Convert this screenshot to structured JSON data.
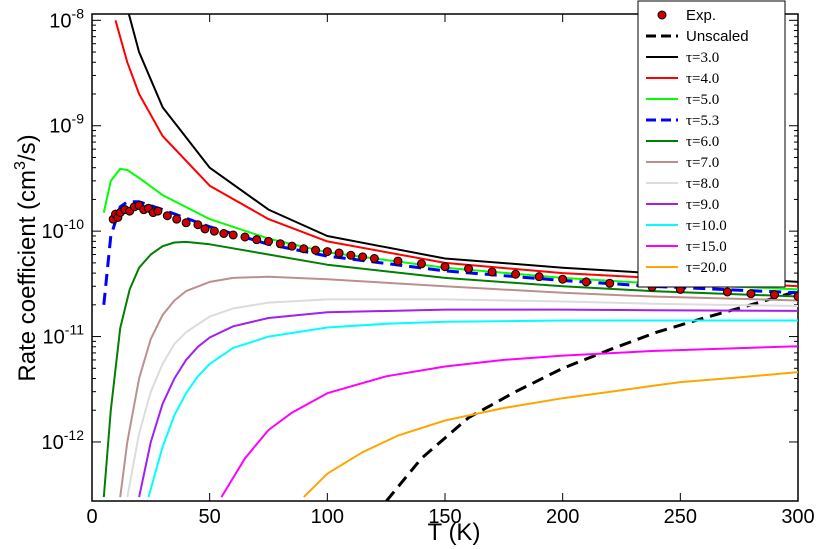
{
  "chart_data": {
    "type": "line",
    "xlabel": "T (K)",
    "ylabel_main": "Rate coefficient (cm",
    "ylabel_sup": "3",
    "ylabel_end": "/s)",
    "xlim": [
      0,
      300
    ],
    "ylim_log10": [
      -12.56,
      -7.94
    ],
    "x_ticks": [
      0,
      50,
      100,
      150,
      200,
      250,
      300
    ],
    "y_ticks": [
      {
        "exp": -12,
        "base": "10",
        "sup": "-12"
      },
      {
        "exp": -11,
        "base": "10",
        "sup": "-11"
      },
      {
        "exp": -10,
        "base": "10",
        "sup": "-10"
      },
      {
        "exp": -9,
        "base": "10",
        "sup": "-9"
      },
      {
        "exp": -8,
        "base": "10",
        "sup": "-8"
      }
    ],
    "experimental": {
      "name": "Exp.",
      "color": "#cc0000",
      "points": [
        [
          9,
          1.3e-10
        ],
        [
          10,
          1.45e-10
        ],
        [
          11,
          1.35e-10
        ],
        [
          12,
          1.5e-10
        ],
        [
          14,
          1.6e-10
        ],
        [
          16,
          1.55e-10
        ],
        [
          18,
          1.7e-10
        ],
        [
          20,
          1.75e-10
        ],
        [
          22,
          1.6e-10
        ],
        [
          24,
          1.65e-10
        ],
        [
          26,
          1.5e-10
        ],
        [
          28,
          1.55e-10
        ],
        [
          32,
          1.4e-10
        ],
        [
          36,
          1.3e-10
        ],
        [
          40,
          1.2e-10
        ],
        [
          45,
          1.15e-10
        ],
        [
          48,
          1.05e-10
        ],
        [
          52,
          1e-10
        ],
        [
          56,
          9.5e-11
        ],
        [
          60,
          9.2e-11
        ],
        [
          65,
          8.8e-11
        ],
        [
          70,
          8.3e-11
        ],
        [
          75,
          8e-11
        ],
        [
          80,
          7.6e-11
        ],
        [
          85,
          7.2e-11
        ],
        [
          90,
          6.8e-11
        ],
        [
          95,
          6.6e-11
        ],
        [
          100,
          6.4e-11
        ],
        [
          105,
          6.2e-11
        ],
        [
          110,
          5.9e-11
        ],
        [
          115,
          5.7e-11
        ],
        [
          120,
          5.5e-11
        ],
        [
          130,
          5.2e-11
        ],
        [
          140,
          4.9e-11
        ],
        [
          150,
          4.6e-11
        ],
        [
          160,
          4.4e-11
        ],
        [
          170,
          4.1e-11
        ],
        [
          180,
          3.9e-11
        ],
        [
          190,
          3.7e-11
        ],
        [
          200,
          3.5e-11
        ],
        [
          210,
          3.3e-11
        ],
        [
          220,
          3.2e-11
        ],
        [
          238,
          2.95e-11
        ],
        [
          250,
          2.8e-11
        ],
        [
          270,
          2.65e-11
        ],
        [
          280,
          2.55e-11
        ],
        [
          290,
          2.5e-11
        ],
        [
          300,
          2.4e-11
        ]
      ]
    },
    "series": [
      {
        "name": "Unscaled",
        "color": "#000000",
        "dash": "dashed",
        "x": [
          120,
          140,
          160,
          180,
          200,
          220,
          240,
          260,
          280,
          300
        ],
        "y": [
          2e-13,
          7e-13,
          1.7e-12,
          3e-12,
          5e-12,
          7.5e-12,
          1.1e-11,
          1.5e-11,
          2e-11,
          2.7e-11
        ]
      },
      {
        "name": "τ=3.0",
        "color": "#000000",
        "dash": "solid",
        "x": [
          15,
          20,
          30,
          50,
          75,
          100,
          150,
          200,
          238,
          300
        ],
        "y": [
          1.3e-08,
          5e-09,
          1.5e-09,
          4e-10,
          1.6e-10,
          9e-11,
          5.5e-11,
          4.5e-11,
          4e-11,
          3.3e-11
        ]
      },
      {
        "name": "τ=4.0",
        "color": "#ff0000",
        "dash": "solid",
        "x": [
          10,
          15,
          20,
          30,
          50,
          75,
          100,
          150,
          200,
          238,
          300
        ],
        "y": [
          1e-08,
          4e-09,
          2e-09,
          8e-10,
          2.7e-10,
          1.3e-10,
          8e-11,
          5e-11,
          4e-11,
          3.6e-11,
          3e-11
        ]
      },
      {
        "name": "τ=5.0",
        "color": "#00ff00",
        "dash": "solid",
        "x": [
          5,
          8,
          12,
          15,
          20,
          30,
          50,
          75,
          100,
          150,
          200,
          238,
          300
        ],
        "y": [
          1.5e-10,
          3e-10,
          3.9e-10,
          3.8e-10,
          3.2e-10,
          2.2e-10,
          1.3e-10,
          8.5e-11,
          6.3e-11,
          4.5e-11,
          3.6e-11,
          3.2e-11,
          2.8e-11
        ]
      },
      {
        "name": "τ=5.3",
        "color": "#0000ff",
        "dash": "dashed",
        "x": [
          5,
          8,
          12,
          15,
          20,
          30,
          50,
          75,
          100,
          150,
          200,
          238,
          300
        ],
        "y": [
          2e-11,
          9e-11,
          1.7e-10,
          1.9e-10,
          1.9e-10,
          1.6e-10,
          1.1e-10,
          7.5e-11,
          5.8e-11,
          4.2e-11,
          3.4e-11,
          3e-11,
          2.6e-11
        ]
      },
      {
        "name": "τ=6.0",
        "color": "#008000",
        "dash": "solid",
        "x": [
          5,
          8,
          12,
          16,
          20,
          25,
          30,
          35,
          40,
          50,
          75,
          100,
          150,
          200,
          238,
          300
        ],
        "y": [
          3e-13,
          2e-12,
          1.2e-11,
          2.8e-11,
          4.5e-11,
          6e-11,
          7.2e-11,
          7.8e-11,
          7.9e-11,
          7.5e-11,
          6e-11,
          4.8e-11,
          3.6e-11,
          3e-11,
          2.7e-11,
          2.4e-11
        ]
      },
      {
        "name": "τ=7.0",
        "color": "#bc8f8f",
        "dash": "solid",
        "x": [
          12,
          15,
          20,
          25,
          30,
          35,
          40,
          50,
          60,
          75,
          100,
          150,
          200,
          238,
          300
        ],
        "y": [
          3e-13,
          1e-12,
          4e-12,
          9.5e-12,
          1.6e-11,
          2.2e-11,
          2.7e-11,
          3.3e-11,
          3.6e-11,
          3.7e-11,
          3.5e-11,
          3e-11,
          2.6e-11,
          2.4e-11,
          2.2e-11
        ]
      },
      {
        "name": "τ=8.0",
        "color": "#dcdcdc",
        "dash": "solid",
        "x": [
          15,
          20,
          25,
          30,
          35,
          40,
          50,
          60,
          75,
          100,
          150,
          200,
          238,
          300
        ],
        "y": [
          3e-13,
          1.2e-12,
          3e-12,
          5.5e-12,
          8.5e-12,
          1.1e-11,
          1.55e-11,
          1.85e-11,
          2.1e-11,
          2.25e-11,
          2.25e-11,
          2.15e-11,
          2.05e-11,
          1.95e-11
        ]
      },
      {
        "name": "τ=9.0",
        "color": "#a020f0",
        "dash": "solid",
        "x": [
          20,
          25,
          30,
          35,
          40,
          45,
          50,
          60,
          75,
          100,
          150,
          200,
          238,
          300
        ],
        "y": [
          3e-13,
          1e-12,
          2.3e-12,
          4e-12,
          6e-12,
          8e-12,
          9.8e-12,
          1.25e-11,
          1.5e-11,
          1.7e-11,
          1.8e-11,
          1.8e-11,
          1.78e-11,
          1.75e-11
        ]
      },
      {
        "name": "τ=10.0",
        "color": "#00ffff",
        "dash": "solid",
        "x": [
          24,
          30,
          35,
          40,
          45,
          50,
          60,
          75,
          100,
          125,
          150,
          200,
          238,
          300
        ],
        "y": [
          3e-13,
          9e-13,
          1.8e-12,
          2.9e-12,
          4.2e-12,
          5.5e-12,
          7.8e-12,
          1e-11,
          1.22e-11,
          1.32e-11,
          1.38e-11,
          1.42e-11,
          1.42e-11,
          1.42e-11
        ]
      },
      {
        "name": "τ=15.0",
        "color": "#ff00ff",
        "dash": "solid",
        "x": [
          55,
          65,
          75,
          85,
          100,
          125,
          150,
          175,
          200,
          238,
          300
        ],
        "y": [
          3e-13,
          7e-13,
          1.3e-12,
          1.9e-12,
          2.9e-12,
          4.2e-12,
          5.2e-12,
          6e-12,
          6.6e-12,
          7.3e-12,
          8.1e-12
        ]
      },
      {
        "name": "τ=20.0",
        "color": "#ffa500",
        "dash": "solid",
        "x": [
          90,
          100,
          115,
          130,
          150,
          175,
          200,
          225,
          238,
          250,
          275,
          300
        ],
        "y": [
          3e-13,
          5e-13,
          8e-13,
          1.15e-12,
          1.6e-12,
          2.1e-12,
          2.6e-12,
          3.1e-12,
          3.4e-12,
          3.7e-12,
          4.1e-12,
          4.6e-12
        ]
      }
    ]
  }
}
